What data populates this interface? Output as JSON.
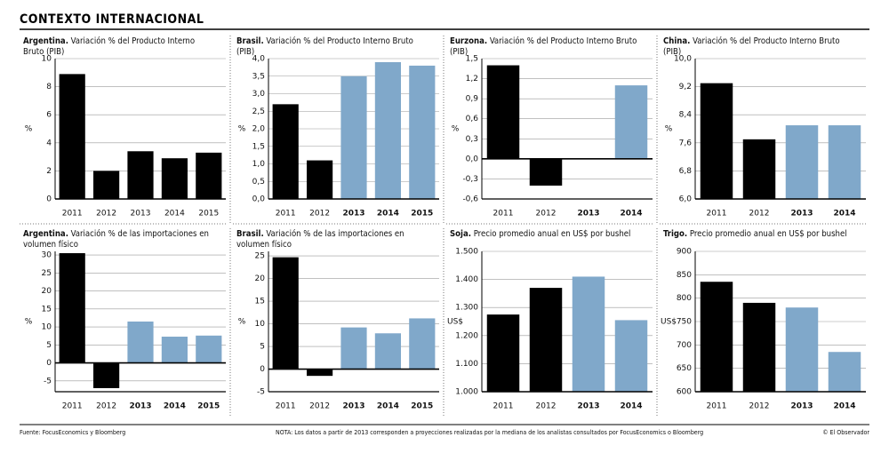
{
  "title": "CONTEXTO INTERNACIONAL",
  "source": "Fuente: FocusEconomics y Bloomberg",
  "note": "NOTA: Los datos a partir de 2013 corresponden a proyecciones realizadas por la mediana de los analistas consultados por FocusEconomics o Bloomberg",
  "credit": "© El Observador",
  "chart_data": [
    {
      "type": "bar",
      "region": "Argentina.",
      "title": "Variación % del Producto Interno Bruto (PIB)",
      "ylabel": "%",
      "categories": [
        "2011",
        "2012",
        "2013",
        "2014",
        "2015"
      ],
      "values": [
        8.9,
        2.0,
        3.4,
        2.9,
        3.3
      ],
      "colors": [
        "#000000",
        "#000000",
        "#000000",
        "#000000",
        "#000000"
      ],
      "ylim": [
        0,
        10
      ],
      "yticks": [
        0,
        2,
        4,
        6,
        8,
        10
      ]
    },
    {
      "type": "bar",
      "region": "Brasil.",
      "title": "Variación % del Producto Interno Bruto (PIB)",
      "ylabel": "%",
      "categories": [
        "2011",
        "2012",
        "2013",
        "2014",
        "2015"
      ],
      "values": [
        2.7,
        1.1,
        3.5,
        3.9,
        3.8
      ],
      "colors": [
        "#000000",
        "#000000",
        "#80a8ca",
        "#80a8ca",
        "#80a8ca"
      ],
      "ylim": [
        0,
        4
      ],
      "yticks": [
        {
          "value": 0,
          "label": "0,0"
        },
        {
          "value": 0.5,
          "label": "0,5"
        },
        {
          "value": 1,
          "label": "1,0"
        },
        {
          "value": 1.5,
          "label": "1,5"
        },
        {
          "value": 2,
          "label": "2,0"
        },
        {
          "value": 2.5,
          "label": "2,5"
        },
        {
          "value": 3,
          "label": "3,0"
        },
        {
          "value": 3.5,
          "label": "3,5"
        },
        {
          "value": 4,
          "label": "4,0"
        }
      ]
    },
    {
      "type": "bar",
      "region": "Eurzona.",
      "title": "Variación % del Producto Interno Bruto (PIB)",
      "ylabel": "%",
      "categories": [
        "2011",
        "2012",
        "2013",
        "2014"
      ],
      "values": [
        1.4,
        -0.4,
        0,
        1.1
      ],
      "colors": [
        "#000000",
        "#000000",
        "#80a8ca",
        "#80a8ca"
      ],
      "ylim": [
        -0.6,
        1.5
      ],
      "yticks": [
        {
          "value": -0.6,
          "label": "-0,6"
        },
        {
          "value": -0.3,
          "label": "-0,3"
        },
        {
          "value": 0,
          "label": "0,0"
        },
        {
          "value": 0.3,
          "label": "0,3"
        },
        {
          "value": 0.6,
          "label": "0,6"
        },
        {
          "value": 0.9,
          "label": "0,9"
        },
        {
          "value": 1.2,
          "label": "1,2"
        },
        {
          "value": 1.5,
          "label": "1,5"
        }
      ]
    },
    {
      "type": "bar",
      "region": "China.",
      "title": "Variación % del Producto Interno Bruto (PIB)",
      "ylabel": "%",
      "categories": [
        "2011",
        "2012",
        "2013",
        "2014"
      ],
      "values": [
        9.3,
        7.7,
        8.1,
        8.1
      ],
      "colors": [
        "#000000",
        "#000000",
        "#80a8ca",
        "#80a8ca"
      ],
      "ylim": [
        6,
        10
      ],
      "yticks": [
        {
          "value": 6,
          "label": "6,0"
        },
        {
          "value": 6.8,
          "label": "6,8"
        },
        {
          "value": 7.6,
          "label": "7,6"
        },
        {
          "value": 8.4,
          "label": "8,4"
        },
        {
          "value": 9.2,
          "label": "9,2"
        },
        {
          "value": 10,
          "label": "10,0"
        }
      ]
    },
    {
      "type": "bar",
      "region": "Argentina.",
      "title": "Variación % de las importaciones en volumen físico",
      "ylabel": "%",
      "categories": [
        "2011",
        "2012",
        "2013",
        "2014",
        "2015"
      ],
      "values": [
        30.5,
        -7,
        11.5,
        7.3,
        7.6
      ],
      "colors": [
        "#000000",
        "#000000",
        "#80a8ca",
        "#80a8ca",
        "#80a8ca"
      ],
      "ylim": [
        -8,
        31
      ],
      "yticks": [
        -5,
        0,
        5,
        10,
        15,
        20,
        25,
        30
      ]
    },
    {
      "type": "bar",
      "region": "Brasil.",
      "title": "Variación % de las importaciones en volumen físico",
      "ylabel": "%",
      "categories": [
        "2011",
        "2012",
        "2013",
        "2014",
        "2015"
      ],
      "values": [
        24.7,
        -1.5,
        9.2,
        7.9,
        11.2
      ],
      "colors": [
        "#000000",
        "#000000",
        "#80a8ca",
        "#80a8ca",
        "#80a8ca"
      ],
      "ylim": [
        -5,
        26
      ],
      "yticks": [
        -5,
        0,
        5,
        10,
        15,
        20,
        25
      ]
    },
    {
      "type": "bar",
      "region": "Soja.",
      "title": "Precio promedio anual en US$ por bushel",
      "ylabel": "US$",
      "categories": [
        "2011",
        "2012",
        "2013",
        "2014"
      ],
      "values": [
        1275,
        1370,
        1410,
        1255
      ],
      "colors": [
        "#000000",
        "#000000",
        "#80a8ca",
        "#80a8ca"
      ],
      "ylim": [
        1000,
        1500
      ],
      "yticks": [
        {
          "value": 1000,
          "label": "1.000"
        },
        {
          "value": 1100,
          "label": "1.100"
        },
        {
          "value": 1200,
          "label": "1.200"
        },
        {
          "value": 1300,
          "label": "1.300"
        },
        {
          "value": 1400,
          "label": "1.400"
        },
        {
          "value": 1500,
          "label": "1.500"
        }
      ]
    },
    {
      "type": "bar",
      "region": "Trigo.",
      "title": "Precio promedio anual en US$ por bushel",
      "ylabel": "US$",
      "categories": [
        "2011",
        "2012",
        "2013",
        "2014"
      ],
      "values": [
        835,
        790,
        780,
        685
      ],
      "colors": [
        "#000000",
        "#000000",
        "#80a8ca",
        "#80a8ca"
      ],
      "ylim": [
        600,
        900
      ],
      "yticks": [
        600,
        650,
        700,
        750,
        800,
        850,
        900
      ]
    }
  ]
}
